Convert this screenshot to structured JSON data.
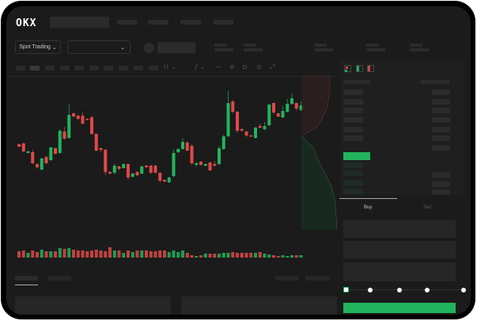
{
  "header": {
    "logo": "OKX"
  },
  "toolbar": {
    "market_select": "Spot Trading",
    "market_chevron": "⌄",
    "pair_chevron": "⌄"
  },
  "trade_panel": {
    "tabs": [
      "Buy",
      "Sell"
    ],
    "active_tab": "Buy",
    "leverage_steps": 5,
    "selected_step": 0
  },
  "colors": {
    "up": "#22b35e",
    "down": "#e04848",
    "background": "#1b1b1b",
    "placeholder": "#2b2b2b"
  },
  "chart_data": {
    "type": "candlestick",
    "title": "",
    "xlabel": "",
    "ylabel": "",
    "grid": false,
    "ohlc": [
      [
        58,
        55,
        59,
        54
      ],
      [
        59,
        49,
        60,
        48
      ],
      [
        47,
        49,
        50,
        47
      ],
      [
        48,
        34,
        51,
        33
      ],
      [
        33,
        29,
        34,
        27
      ],
      [
        26,
        40,
        41,
        25
      ],
      [
        42,
        34,
        43,
        33
      ],
      [
        38,
        54,
        55,
        37
      ],
      [
        53,
        46,
        54,
        45
      ],
      [
        47,
        75,
        77,
        46
      ],
      [
        74,
        65,
        80,
        64
      ],
      [
        66,
        95,
        108,
        65
      ],
      [
        97,
        93,
        98,
        92
      ],
      [
        94,
        90,
        96,
        88
      ],
      [
        94,
        84,
        98,
        83
      ],
      [
        90,
        89,
        91,
        88
      ],
      [
        92,
        71,
        94,
        70
      ],
      [
        71,
        50,
        72,
        49
      ],
      [
        53,
        51,
        54,
        48
      ],
      [
        51,
        23,
        52,
        19
      ],
      [
        23,
        21,
        24,
        20
      ],
      [
        22,
        31,
        33,
        20
      ],
      [
        30,
        27,
        31,
        25
      ],
      [
        28,
        33,
        34,
        27
      ],
      [
        33,
        16,
        34,
        13
      ],
      [
        17,
        21,
        22,
        16
      ],
      [
        23,
        19,
        24,
        18
      ],
      [
        21,
        30,
        31,
        20
      ],
      [
        31,
        29,
        32,
        28
      ],
      [
        31,
        22,
        32,
        21
      ],
      [
        31,
        22,
        32,
        21
      ],
      [
        22,
        12,
        23,
        10
      ],
      [
        13,
        11,
        14,
        10
      ],
      [
        10,
        16,
        17,
        9
      ],
      [
        18,
        47,
        52,
        16
      ],
      [
        48,
        52,
        53,
        47
      ],
      [
        52,
        61,
        66,
        51
      ],
      [
        60,
        50,
        62,
        49
      ],
      [
        56,
        34,
        58,
        32
      ],
      [
        32,
        34,
        36,
        30
      ],
      [
        36,
        32,
        37,
        31
      ],
      [
        31,
        33,
        34,
        30
      ],
      [
        35,
        25,
        36,
        24
      ],
      [
        33,
        31,
        37,
        30
      ],
      [
        33,
        53,
        56,
        32
      ],
      [
        52,
        68,
        70,
        51
      ],
      [
        68,
        110,
        125,
        67
      ],
      [
        112,
        99,
        114,
        97
      ],
      [
        99,
        75,
        100,
        73
      ],
      [
        77,
        75,
        79,
        74
      ],
      [
        74,
        69,
        75,
        67
      ],
      [
        69,
        68,
        70,
        67
      ],
      [
        66,
        79,
        80,
        65
      ],
      [
        81,
        79,
        84,
        78
      ],
      [
        77,
        81,
        86,
        76
      ],
      [
        82,
        108,
        109,
        81
      ],
      [
        110,
        98,
        111,
        96
      ],
      [
        97,
        93,
        98,
        92
      ],
      [
        92,
        100,
        106,
        91
      ],
      [
        99,
        109,
        115,
        98
      ],
      [
        109,
        116,
        122,
        108
      ],
      [
        110,
        103,
        111,
        100
      ],
      [
        101,
        107,
        112,
        100
      ]
    ],
    "volume": [
      8,
      9,
      6,
      9,
      7,
      10,
      8,
      8,
      8,
      12,
      11,
      12,
      10,
      9,
      9,
      8,
      9,
      10,
      9,
      8,
      13,
      9,
      9,
      6,
      9,
      7,
      9,
      9,
      9,
      8,
      8,
      9,
      9,
      7,
      9,
      7,
      9,
      6,
      3,
      2,
      3,
      5,
      5,
      5,
      5,
      6,
      6,
      7,
      6,
      6,
      6,
      6,
      6,
      7,
      5,
      4,
      3,
      2,
      3,
      2,
      3,
      3,
      3
    ]
  }
}
